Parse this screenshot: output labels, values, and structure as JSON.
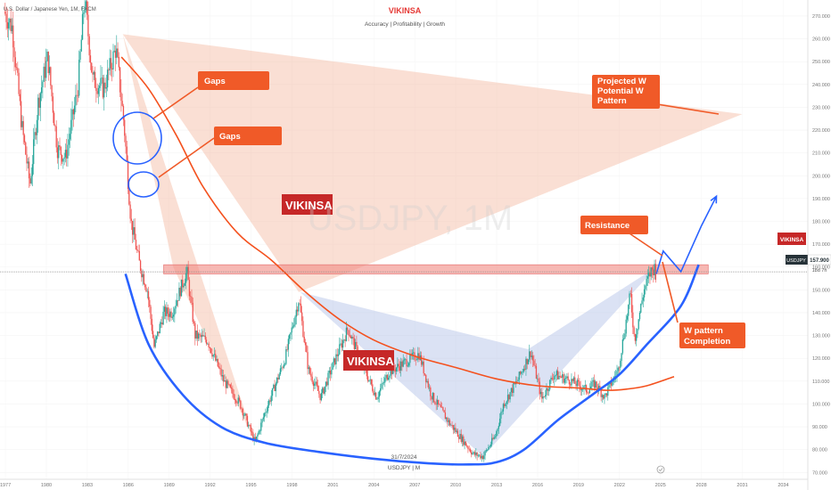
{
  "header": {
    "symbol_description": "U.S. Dollar / Japanese Yen, 1M, FXCM",
    "brand": "VIKINSA",
    "tagline": "Accuracy  |  Profitability  |  Growth"
  },
  "watermark": "USDJPY, 1M",
  "footer": {
    "date": "31/7/2024",
    "symbol": "USDJPY  |  M"
  },
  "price_tag": {
    "price": "157.900",
    "countdown": "18d 7h"
  },
  "side_badge": "VIKINSA",
  "labels": {
    "gaps_1": "Gaps",
    "gaps_2": "Gaps",
    "projected": [
      "Projected W",
      "Potential W",
      "Pattern"
    ],
    "resistance": "Resistance",
    "completion": [
      "W pattern",
      "Completion"
    ],
    "brand_box_1": "VIKINSA",
    "brand_box_2": "VIKINSA"
  },
  "colors": {
    "bull": "#26a69a",
    "bear": "#ef5350",
    "curve": "#2962ff",
    "ma": "#f4511e",
    "callout": "#f05a28",
    "resistance_zone": "#f28b82",
    "brand_red": "#c62828"
  },
  "chart_data": {
    "type": "candlestick",
    "title": "USDJPY, 1M",
    "timeframe": "1M",
    "source": "FXCM",
    "x_ticks": [
      "1977",
      "1980",
      "1983",
      "1986",
      "1989",
      "1992",
      "1995",
      "1998",
      "2001",
      "2004",
      "2007",
      "2010",
      "2013",
      "2016",
      "2019",
      "2022",
      "2025",
      "2028",
      "2031",
      "2034"
    ],
    "y_ticks": [
      270,
      260,
      250,
      240,
      230,
      220,
      210,
      200,
      190,
      180,
      170,
      160,
      150,
      140,
      130,
      120,
      110,
      100,
      90,
      80,
      70
    ],
    "ylim": [
      67,
      277
    ],
    "xlim": [
      1976.8,
      2035.8
    ],
    "last_price": 157.9,
    "path": [
      [
        1976.9,
        272
      ],
      [
        1977.5,
        265
      ],
      [
        1978.2,
        222
      ],
      [
        1978.8,
        196
      ],
      [
        1979.4,
        232
      ],
      [
        1980.1,
        252
      ],
      [
        1980.8,
        212
      ],
      [
        1981.4,
        208
      ],
      [
        1982.3,
        238
      ],
      [
        1982.8,
        278
      ],
      [
        1983.4,
        242
      ],
      [
        1984.2,
        238
      ],
      [
        1985.1,
        256
      ],
      [
        1985.7,
        222
      ],
      [
        1986.2,
        180
      ],
      [
        1986.8,
        162
      ],
      [
        1987.4,
        150
      ],
      [
        1987.9,
        125
      ],
      [
        1988.6,
        140
      ],
      [
        1989.2,
        140
      ],
      [
        1990.3,
        158
      ],
      [
        1990.9,
        130
      ],
      [
        1991.8,
        128
      ],
      [
        1993.0,
        110
      ],
      [
        1994.2,
        100
      ],
      [
        1995.3,
        83
      ],
      [
        1996.0,
        96
      ],
      [
        1997.5,
        120
      ],
      [
        1998.5,
        146
      ],
      [
        1999.2,
        115
      ],
      [
        2000.1,
        103
      ],
      [
        2001.2,
        120
      ],
      [
        2002.1,
        133
      ],
      [
        2003.1,
        118
      ],
      [
        2004.2,
        103
      ],
      [
        2005.1,
        114
      ],
      [
        2007.3,
        122
      ],
      [
        2008.2,
        104
      ],
      [
        2009.5,
        92
      ],
      [
        2011.3,
        78
      ],
      [
        2012.0,
        77
      ],
      [
        2012.9,
        86
      ],
      [
        2013.5,
        100
      ],
      [
        2014.5,
        110
      ],
      [
        2015.5,
        123
      ],
      [
        2016.3,
        102
      ],
      [
        2017.2,
        113
      ],
      [
        2018.5,
        110
      ],
      [
        2019.6,
        106
      ],
      [
        2020.2,
        109
      ],
      [
        2020.9,
        103
      ],
      [
        2021.9,
        115
      ],
      [
        2022.8,
        148
      ],
      [
        2023.1,
        128
      ],
      [
        2023.8,
        150
      ],
      [
        2024.3,
        158
      ],
      [
        2024.6,
        160
      ],
      [
        2024.7,
        155
      ]
    ],
    "series": [
      {
        "name": "",
        "type": "curve",
        "points": [
          [
            1985.8,
            157
          ],
          [
            1987.5,
            126
          ],
          [
            1990.0,
            104
          ],
          [
            1992.8,
            90
          ],
          [
            1996.0,
            83
          ],
          [
            2000.0,
            79
          ],
          [
            2004.0,
            76
          ],
          [
            2008.0,
            74
          ],
          [
            2011.0,
            73.5
          ],
          [
            2013.0,
            74.5
          ],
          [
            2015.0,
            80
          ],
          [
            2017.5,
            93
          ],
          [
            2020.0,
            104
          ],
          [
            2022.0,
            113
          ],
          [
            2024.0,
            126
          ],
          [
            2026.5,
            143
          ],
          [
            2027.8,
            161
          ]
        ]
      },
      {
        "name": "",
        "type": "moving-average",
        "points": [
          [
            1985.5,
            252
          ],
          [
            1987.5,
            238
          ],
          [
            1989.5,
            218
          ],
          [
            1991.5,
            195
          ],
          [
            1994.0,
            175
          ],
          [
            1996.5,
            163
          ],
          [
            1999.0,
            149
          ],
          [
            2001.5,
            137
          ],
          [
            2004.0,
            128
          ],
          [
            2007.0,
            121
          ],
          [
            2010.0,
            116
          ],
          [
            2013.0,
            111
          ],
          [
            2016.0,
            108
          ],
          [
            2019.0,
            107
          ],
          [
            2021.0,
            106
          ],
          [
            2022.5,
            106.5
          ],
          [
            2024.0,
            108
          ],
          [
            2026.0,
            112
          ]
        ]
      },
      {
        "name": "",
        "type": "projection",
        "points": [
          [
            2024.7,
            157
          ],
          [
            2025.2,
            167
          ],
          [
            2026.5,
            158
          ],
          [
            2028.0,
            178
          ],
          [
            2029.1,
            191
          ]
        ]
      }
    ],
    "zones": [
      {
        "label": "Resistance",
        "from": 157,
        "to": 161
      }
    ],
    "pattern_triangles": [
      {
        "points": [
          [
            1985.6,
            262
          ],
          [
            1995.3,
            83
          ],
          [
            1989.3,
            160
          ]
        ]
      },
      {
        "points": [
          [
            1985.6,
            262
          ],
          [
            2031.0,
            227
          ],
          [
            1998.5,
            149
          ]
        ]
      },
      {
        "points": [
          [
            1998.6,
            149
          ],
          [
            2012.0,
            77
          ],
          [
            2015.3,
            124
          ]
        ]
      },
      {
        "points": [
          [
            2012.0,
            77
          ],
          [
            2024.7,
            160
          ],
          [
            2015.3,
            124
          ]
        ]
      }
    ],
    "annotation_date": "31/7/2024"
  }
}
